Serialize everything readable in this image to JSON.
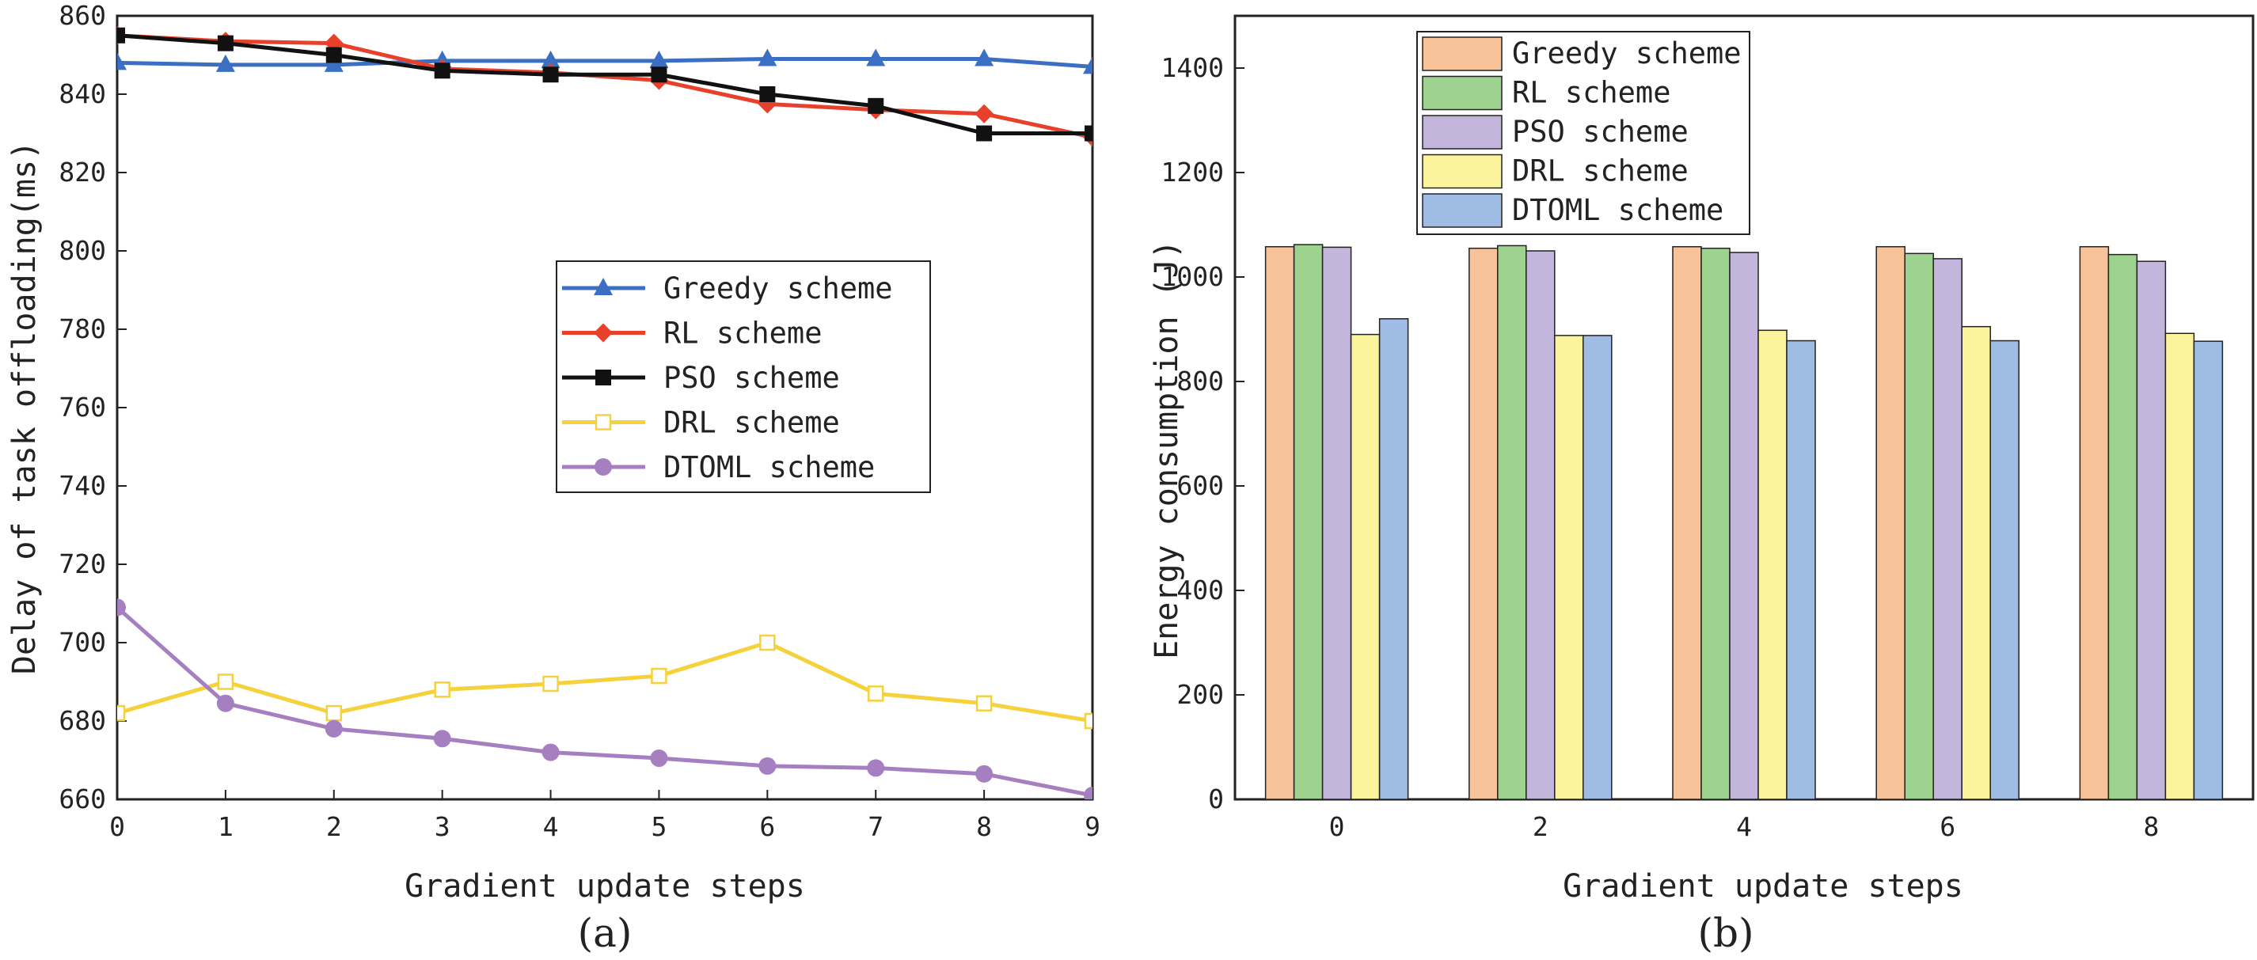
{
  "chart_data": [
    {
      "type": "line",
      "caption": "(a)",
      "xlabel": "Gradient update steps",
      "ylabel": "Delay of task offloading(ms)",
      "xlim": [
        0,
        9
      ],
      "ylim": [
        660,
        860
      ],
      "x_ticks": [
        0,
        1,
        2,
        3,
        4,
        5,
        6,
        7,
        8,
        9
      ],
      "y_ticks": [
        660,
        680,
        700,
        720,
        740,
        760,
        780,
        800,
        820,
        840,
        860
      ],
      "legend_position": "center-right",
      "x": [
        0,
        1,
        2,
        3,
        4,
        5,
        6,
        7,
        8,
        9
      ],
      "series": [
        {
          "name": "Greedy scheme",
          "color": "#3a6fc4",
          "marker": "triangle",
          "values": [
            848,
            847.5,
            847.5,
            848.5,
            848.5,
            848.5,
            849,
            849,
            849,
            847
          ]
        },
        {
          "name": "RL scheme",
          "color": "#e8412b",
          "marker": "diamond",
          "values": [
            855,
            853.5,
            853,
            846.5,
            845.5,
            843.5,
            837.5,
            836,
            835,
            829
          ]
        },
        {
          "name": "PSO scheme",
          "color": "#111111",
          "marker": "square",
          "values": [
            855,
            853,
            850,
            846,
            845,
            845,
            840,
            837,
            830,
            830
          ]
        },
        {
          "name": "DRL scheme",
          "color": "#f5d13c",
          "marker": "open-square",
          "values": [
            682,
            690,
            682,
            688,
            689.5,
            691.5,
            700,
            687,
            684.5,
            680
          ]
        },
        {
          "name": "DTOML scheme",
          "color": "#a57fc0",
          "marker": "circle",
          "values": [
            709,
            684.5,
            678,
            675.5,
            672,
            670.5,
            668.5,
            668,
            666.5,
            661
          ]
        }
      ]
    },
    {
      "type": "bar",
      "caption": "(b)",
      "xlabel": "Gradient update steps",
      "ylabel": "Energy consumption (J)",
      "categories": [
        "0",
        "2",
        "4",
        "6",
        "8"
      ],
      "ylim": [
        0,
        1500
      ],
      "y_ticks": [
        0,
        200,
        400,
        600,
        800,
        1000,
        1200,
        1400
      ],
      "legend_position": "top-left",
      "series": [
        {
          "name": "Greedy scheme",
          "color": "#f9c399",
          "values": [
            1058,
            1055,
            1058,
            1058,
            1058
          ]
        },
        {
          "name": "RL scheme",
          "color": "#9dd38f",
          "values": [
            1062,
            1060,
            1055,
            1045,
            1043
          ]
        },
        {
          "name": "PSO scheme",
          "color": "#c4b5dc",
          "values": [
            1057,
            1050,
            1047,
            1035,
            1030
          ]
        },
        {
          "name": "DRL scheme",
          "color": "#fcf49c",
          "values": [
            890,
            888,
            898,
            905,
            892
          ]
        },
        {
          "name": "DTOML scheme",
          "color": "#9fbde4",
          "values": [
            920,
            888,
            878,
            878,
            877
          ]
        }
      ]
    }
  ]
}
